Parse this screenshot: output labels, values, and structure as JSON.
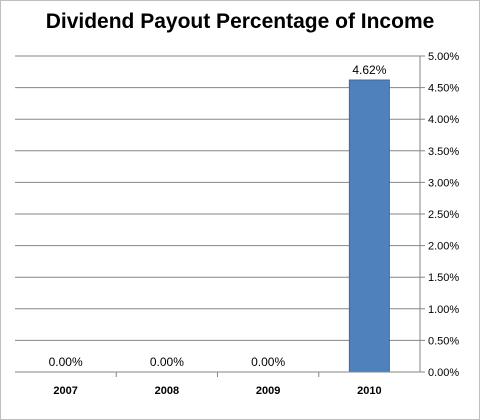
{
  "chart_data": {
    "type": "bar",
    "title": "Dividend Payout Percentage of Income",
    "categories": [
      "2007",
      "2008",
      "2009",
      "2010"
    ],
    "values": [
      0.0,
      0.0,
      0.0,
      4.62
    ],
    "data_labels": [
      "0.00%",
      "0.00%",
      "0.00%",
      "4.62%"
    ],
    "y_ticks": [
      "0.00%",
      "0.50%",
      "1.00%",
      "1.50%",
      "2.00%",
      "2.50%",
      "3.00%",
      "3.50%",
      "4.00%",
      "4.50%",
      "5.00%"
    ],
    "ylim": [
      0,
      5
    ],
    "y_axis_position": "right",
    "grid": true,
    "legend": "none",
    "colors": {
      "bar": "#4f81bd",
      "bar_edge": "#3a6aa6",
      "grid": "#868686",
      "axis": "#868686"
    }
  }
}
